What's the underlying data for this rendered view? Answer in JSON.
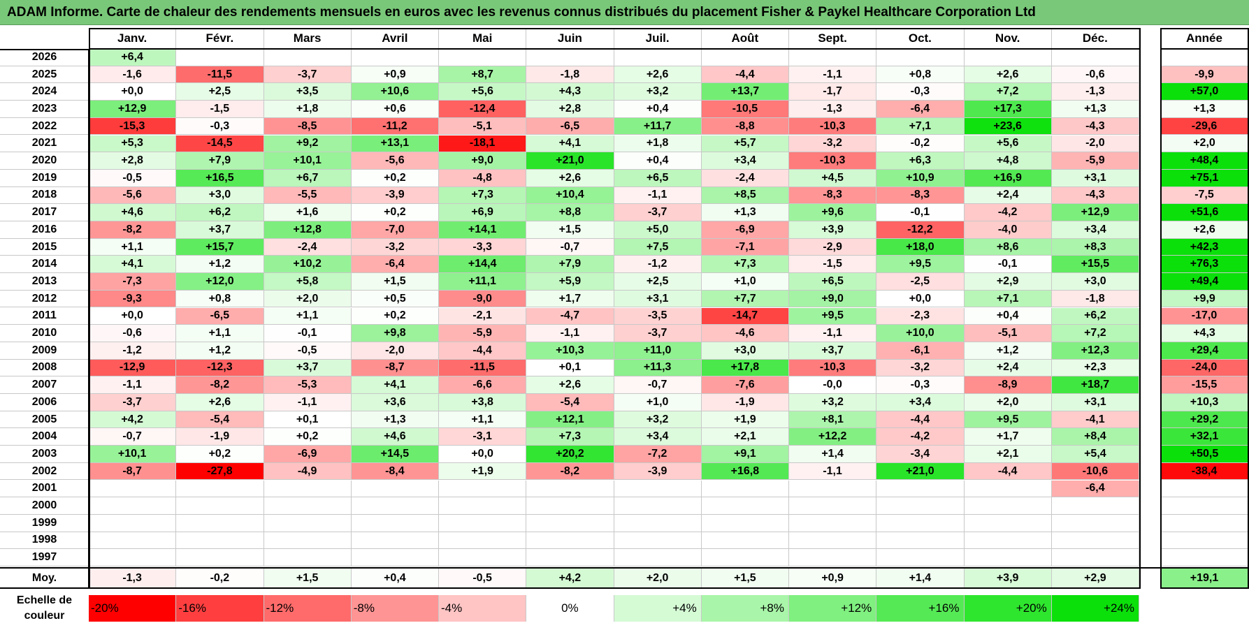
{
  "title": "ADAM Informe. Carte de chaleur des rendements mensuels en euros avec les revenus connus distribués du placement Fisher & Paykel Healthcare Corporation Ltd",
  "chart_data": {
    "type": "heatmap",
    "months": [
      "Janv.",
      "Févr.",
      "Mars",
      "Avril",
      "Mai",
      "Juin",
      "Juil.",
      "Août",
      "Sept.",
      "Oct.",
      "Nov.",
      "Déc."
    ],
    "annual_header": "Année",
    "rows": [
      {
        "year": "2026",
        "months": [
          "+6,4",
          "",
          "",
          "",
          "",
          "",
          "",
          "",
          "",
          "",
          "",
          ""
        ],
        "annual": ""
      },
      {
        "year": "2025",
        "months": [
          "-1,6",
          "-11,5",
          "-3,7",
          "+0,9",
          "+8,7",
          "-1,8",
          "+2,6",
          "-4,4",
          "-1,1",
          "+0,8",
          "+2,6",
          "-0,6"
        ],
        "annual": "-9,9"
      },
      {
        "year": "2024",
        "months": [
          "+0,0",
          "+2,5",
          "+3,5",
          "+10,6",
          "+5,6",
          "+4,3",
          "+3,2",
          "+13,7",
          "-1,7",
          "-0,3",
          "+7,2",
          "-1,3"
        ],
        "annual": "+57,0"
      },
      {
        "year": "2023",
        "months": [
          "+12,9",
          "-1,5",
          "+1,8",
          "+0,6",
          "-12,4",
          "+2,8",
          "+0,4",
          "-10,5",
          "-1,3",
          "-6,4",
          "+17,3",
          "+1,3"
        ],
        "annual": "+1,3"
      },
      {
        "year": "2022",
        "months": [
          "-15,3",
          "-0,3",
          "-8,5",
          "-11,2",
          "-5,1",
          "-6,5",
          "+11,7",
          "-8,8",
          "-10,3",
          "+7,1",
          "+23,6",
          "-4,3"
        ],
        "annual": "-29,6"
      },
      {
        "year": "2021",
        "months": [
          "+5,3",
          "-14,5",
          "+9,2",
          "+13,1",
          "-18,1",
          "+4,1",
          "+1,8",
          "+5,7",
          "-3,2",
          "-0,2",
          "+5,6",
          "-2,0"
        ],
        "annual": "+2,0"
      },
      {
        "year": "2020",
        "months": [
          "+2,8",
          "+7,9",
          "+10,1",
          "-5,6",
          "+9,0",
          "+21,0",
          "+0,4",
          "+3,4",
          "-10,3",
          "+6,3",
          "+4,8",
          "-5,9"
        ],
        "annual": "+48,4"
      },
      {
        "year": "2019",
        "months": [
          "-0,5",
          "+16,5",
          "+6,7",
          "+0,2",
          "-4,8",
          "+2,6",
          "+6,5",
          "-2,4",
          "+4,5",
          "+10,9",
          "+16,9",
          "+3,1"
        ],
        "annual": "+75,1"
      },
      {
        "year": "2018",
        "months": [
          "-5,6",
          "+3,0",
          "-5,5",
          "-3,9",
          "+7,3",
          "+10,4",
          "-1,1",
          "+8,5",
          "-8,3",
          "-8,3",
          "+2,4",
          "-4,3"
        ],
        "annual": "-7,5"
      },
      {
        "year": "2017",
        "months": [
          "+4,6",
          "+6,2",
          "+1,6",
          "+0,2",
          "+6,9",
          "+8,8",
          "-3,7",
          "+1,3",
          "+9,6",
          "-0,1",
          "-4,2",
          "+12,9"
        ],
        "annual": "+51,6"
      },
      {
        "year": "2016",
        "months": [
          "-8,2",
          "+3,7",
          "+12,8",
          "-7,0",
          "+14,1",
          "+1,5",
          "+5,0",
          "-6,9",
          "+3,9",
          "-12,2",
          "-4,0",
          "+3,4"
        ],
        "annual": "+2,6"
      },
      {
        "year": "2015",
        "months": [
          "+1,1",
          "+15,7",
          "-2,4",
          "-3,2",
          "-3,3",
          "-0,7",
          "+7,5",
          "-7,1",
          "-2,9",
          "+18,0",
          "+8,6",
          "+8,3"
        ],
        "annual": "+42,3"
      },
      {
        "year": "2014",
        "months": [
          "+4,1",
          "+1,2",
          "+10,2",
          "-6,4",
          "+14,4",
          "+7,9",
          "-1,2",
          "+7,3",
          "-1,5",
          "+9,5",
          "-0,1",
          "+15,5"
        ],
        "annual": "+76,3"
      },
      {
        "year": "2013",
        "months": [
          "-7,3",
          "+12,0",
          "+5,8",
          "+1,5",
          "+11,1",
          "+5,9",
          "+2,5",
          "+1,0",
          "+6,5",
          "-2,5",
          "+2,9",
          "+3,0"
        ],
        "annual": "+49,4"
      },
      {
        "year": "2012",
        "months": [
          "-9,3",
          "+0,8",
          "+2,0",
          "+0,5",
          "-9,0",
          "+1,7",
          "+3,1",
          "+7,7",
          "+9,0",
          "+0,0",
          "+7,1",
          "-1,8"
        ],
        "annual": "+9,9"
      },
      {
        "year": "2011",
        "months": [
          "+0,0",
          "-6,5",
          "+1,1",
          "+0,2",
          "-2,1",
          "-4,7",
          "-3,5",
          "-14,7",
          "+9,5",
          "-2,3",
          "+0,4",
          "+6,2"
        ],
        "annual": "-17,0"
      },
      {
        "year": "2010",
        "months": [
          "-0,6",
          "+1,1",
          "-0,1",
          "+9,8",
          "-5,9",
          "-1,1",
          "-3,7",
          "-4,6",
          "-1,1",
          "+10,0",
          "-5,1",
          "+7,2"
        ],
        "annual": "+4,3"
      },
      {
        "year": "2009",
        "months": [
          "-1,2",
          "+1,2",
          "-0,5",
          "-2,0",
          "-4,4",
          "+10,3",
          "+11,0",
          "+3,0",
          "+3,7",
          "-6,1",
          "+1,2",
          "+12,3"
        ],
        "annual": "+29,4"
      },
      {
        "year": "2008",
        "months": [
          "-12,9",
          "-12,3",
          "+3,7",
          "-8,7",
          "-11,5",
          "+0,1",
          "+11,3",
          "+17,8",
          "-10,3",
          "-3,2",
          "+2,4",
          "+2,3"
        ],
        "annual": "-24,0"
      },
      {
        "year": "2007",
        "months": [
          "-1,1",
          "-8,2",
          "-5,3",
          "+4,1",
          "-6,6",
          "+2,6",
          "-0,7",
          "-7,6",
          "-0,0",
          "-0,3",
          "-8,9",
          "+18,7"
        ],
        "annual": "-15,5"
      },
      {
        "year": "2006",
        "months": [
          "-3,7",
          "+2,6",
          "-1,1",
          "+3,6",
          "+3,8",
          "-5,4",
          "+1,0",
          "-1,9",
          "+3,2",
          "+3,4",
          "+2,0",
          "+3,1"
        ],
        "annual": "+10,3"
      },
      {
        "year": "2005",
        "months": [
          "+4,2",
          "-5,4",
          "+0,1",
          "+1,3",
          "+1,1",
          "+12,1",
          "+3,2",
          "+1,9",
          "+8,1",
          "-4,4",
          "+9,5",
          "-4,1"
        ],
        "annual": "+29,2"
      },
      {
        "year": "2004",
        "months": [
          "-0,7",
          "-1,9",
          "+0,2",
          "+4,6",
          "-3,1",
          "+7,3",
          "+3,4",
          "+2,1",
          "+12,2",
          "-4,2",
          "+1,7",
          "+8,4"
        ],
        "annual": "+32,1"
      },
      {
        "year": "2003",
        "months": [
          "+10,1",
          "+0,2",
          "-6,9",
          "+14,5",
          "+0,0",
          "+20,2",
          "-7,2",
          "+9,1",
          "+1,4",
          "-3,4",
          "+2,1",
          "+5,4"
        ],
        "annual": "+50,5"
      },
      {
        "year": "2002",
        "months": [
          "-8,7",
          "-27,8",
          "-4,9",
          "-8,4",
          "+1,9",
          "-8,2",
          "-3,9",
          "+16,8",
          "-1,1",
          "+21,0",
          "-4,4",
          "-10,6"
        ],
        "annual": "-38,4"
      },
      {
        "year": "2001",
        "months": [
          "",
          "",
          "",
          "",
          "",
          "",
          "",
          "",
          "",
          "",
          "",
          "-6,4"
        ],
        "annual": ""
      },
      {
        "year": "2000",
        "months": [
          "",
          "",
          "",
          "",
          "",
          "",
          "",
          "",
          "",
          "",
          "",
          ""
        ],
        "annual": ""
      },
      {
        "year": "1999",
        "months": [
          "",
          "",
          "",
          "",
          "",
          "",
          "",
          "",
          "",
          "",
          "",
          ""
        ],
        "annual": ""
      },
      {
        "year": "1998",
        "months": [
          "",
          "",
          "",
          "",
          "",
          "",
          "",
          "",
          "",
          "",
          "",
          ""
        ],
        "annual": ""
      },
      {
        "year": "1997",
        "months": [
          "",
          "",
          "",
          "",
          "",
          "",
          "",
          "",
          "",
          "",
          "",
          ""
        ],
        "annual": ""
      }
    ],
    "average": {
      "label": "Moy.",
      "months": [
        "-1,3",
        "-0,2",
        "+1,5",
        "+0,4",
        "-0,5",
        "+4,2",
        "+2,0",
        "+1,5",
        "+0,9",
        "+1,4",
        "+3,9",
        "+2,9"
      ],
      "annual": "+19,1"
    },
    "scale": {
      "label": "Echelle de couleur",
      "stops": [
        {
          "label": "-20%",
          "value": -20,
          "color": "#ff0000"
        },
        {
          "label": "-16%",
          "value": -16,
          "color": "#ff3f3f"
        },
        {
          "label": "-12%",
          "value": -12,
          "color": "#ff6b6b"
        },
        {
          "label": "-8%",
          "value": -8,
          "color": "#ff9494"
        },
        {
          "label": "-4%",
          "value": -4,
          "color": "#ffc4c4"
        },
        {
          "label": "0%",
          "value": 0,
          "color": "#ffffff"
        },
        {
          "label": "+4%",
          "value": 4,
          "color": "#d5fbd5"
        },
        {
          "label": "+8%",
          "value": 8,
          "color": "#a9f5a9"
        },
        {
          "label": "+12%",
          "value": 12,
          "color": "#80f080"
        },
        {
          "label": "+16%",
          "value": 16,
          "color": "#55ea55"
        },
        {
          "label": "+20%",
          "value": 20,
          "color": "#2ee62e"
        },
        {
          "label": "+24%",
          "value": 24,
          "color": "#0be00b"
        }
      ]
    },
    "annual_scale": {
      "min": -40,
      "max": 40
    }
  }
}
